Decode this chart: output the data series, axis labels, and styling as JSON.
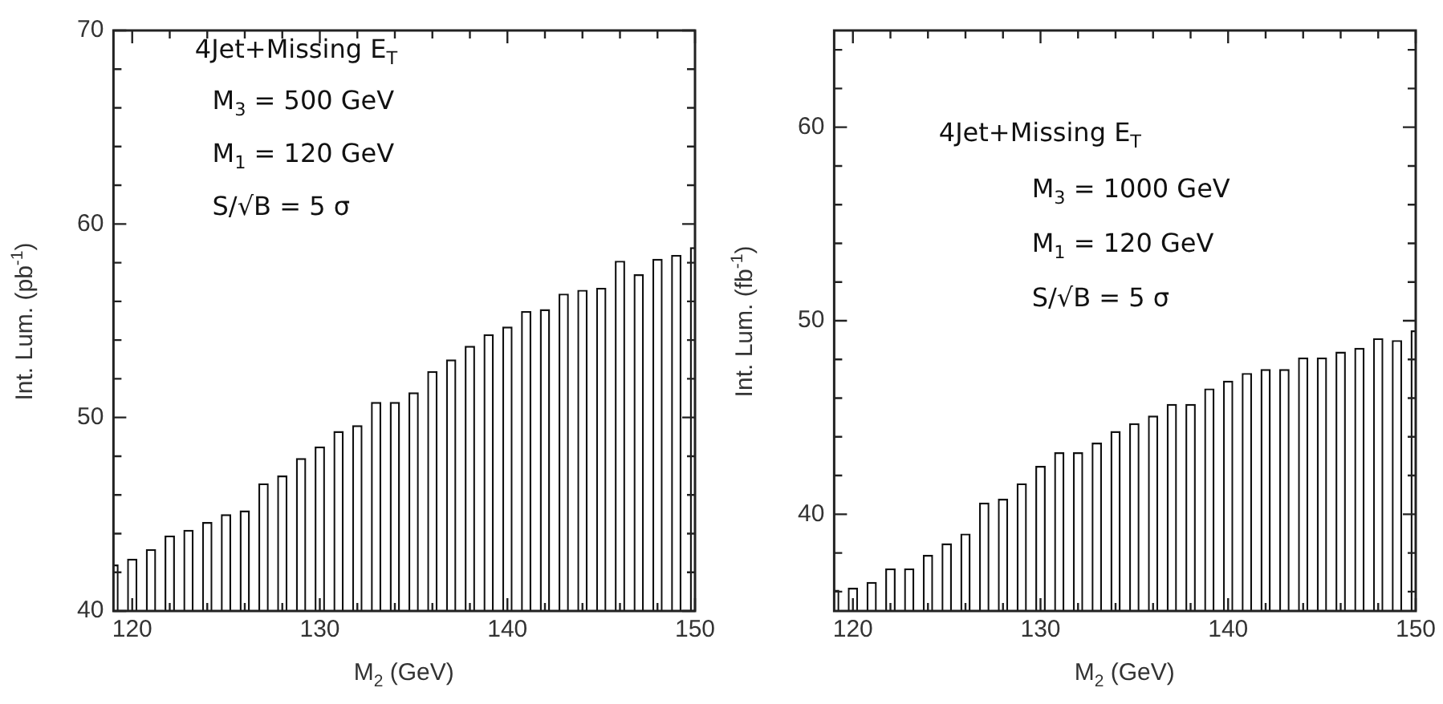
{
  "chart_data": [
    {
      "type": "bar",
      "xlabel": "M$_{2}$ (GeV)",
      "ylabel": "Int. Lum. (pb$^{-1}$)",
      "annotations": [
        "4Jet+Missing E$_{T}$",
        "M$_{3}$ = 500 GeV",
        "M$_{1}$ = 120 GeV",
        "S/√B = 5 σ"
      ],
      "x": [
        119,
        120,
        121,
        122,
        123,
        124,
        125,
        126,
        127,
        128,
        129,
        130,
        131,
        132,
        133,
        134,
        135,
        136,
        137,
        138,
        139,
        140,
        141,
        142,
        143,
        144,
        145,
        146,
        147,
        148,
        149,
        150
      ],
      "values": [
        42.4,
        42.7,
        43.2,
        43.9,
        44.2,
        44.6,
        45.0,
        45.2,
        46.6,
        47.0,
        47.9,
        48.5,
        49.3,
        49.6,
        50.8,
        50.8,
        51.3,
        52.4,
        53.0,
        53.7,
        54.3,
        54.7,
        55.5,
        55.6,
        56.4,
        56.6,
        56.7,
        58.1,
        57.4,
        58.2,
        58.4,
        58.8
      ],
      "color": "#ffffff",
      "xlim": [
        119,
        150
      ],
      "xticks": [
        120,
        {
          "value": 122,
          "label": null
        },
        {
          "value": 124,
          "label": null
        },
        {
          "value": 126,
          "label": null
        },
        {
          "value": 128,
          "label": null
        },
        130,
        {
          "value": 132,
          "label": null
        },
        {
          "value": 134,
          "label": null
        },
        {
          "value": 136,
          "label": null
        },
        {
          "value": 138,
          "label": null
        },
        140,
        {
          "value": 142,
          "label": null
        },
        {
          "value": 144,
          "label": null
        },
        {
          "value": 146,
          "label": null
        },
        {
          "value": 148,
          "label": null
        },
        150
      ],
      "ylim": [
        40,
        70
      ],
      "yticks": [
        40,
        {
          "value": 42,
          "label": null
        },
        {
          "value": 44,
          "label": null
        },
        {
          "value": 46,
          "label": null
        },
        {
          "value": 48,
          "label": null
        },
        50,
        {
          "value": 52,
          "label": null
        },
        {
          "value": 54,
          "label": null
        },
        {
          "value": 56,
          "label": null
        },
        {
          "value": 58,
          "label": null
        },
        60,
        {
          "value": 62,
          "label": null
        },
        {
          "value": 64,
          "label": null
        },
        {
          "value": 66,
          "label": null
        },
        {
          "value": 68,
          "label": null
        },
        70
      ]
    },
    {
      "type": "bar",
      "xlabel": "M$_{2}$ (GeV)",
      "ylabel": "Int. Lum. (fb$^{-1}$)",
      "annotations": [
        "4Jet+Missing E$_{T}$",
        "M$_{3}$ = 1000 GeV",
        "M$_{1}$ = 120 GeV",
        "S/√B = 5 σ"
      ],
      "x": [
        119,
        120,
        121,
        122,
        123,
        124,
        125,
        126,
        127,
        128,
        129,
        130,
        131,
        132,
        133,
        134,
        135,
        136,
        137,
        138,
        139,
        140,
        141,
        142,
        143,
        144,
        145,
        146,
        147,
        148,
        149,
        150
      ],
      "values": [
        36.1,
        36.2,
        36.5,
        37.2,
        37.2,
        37.9,
        38.5,
        39.0,
        40.6,
        40.8,
        41.6,
        42.5,
        43.2,
        43.2,
        43.7,
        44.3,
        44.7,
        45.1,
        45.7,
        45.7,
        46.5,
        46.9,
        47.3,
        47.5,
        47.5,
        48.1,
        48.1,
        48.4,
        48.6,
        49.1,
        49.0,
        49.5
      ],
      "color": "#ffffff",
      "xlim": [
        119,
        150
      ],
      "xticks": [
        120,
        {
          "value": 122,
          "label": null
        },
        {
          "value": 124,
          "label": null
        },
        {
          "value": 126,
          "label": null
        },
        {
          "value": 128,
          "label": null
        },
        130,
        {
          "value": 132,
          "label": null
        },
        {
          "value": 134,
          "label": null
        },
        {
          "value": 136,
          "label": null
        },
        {
          "value": 138,
          "label": null
        },
        140,
        {
          "value": 142,
          "label": null
        },
        {
          "value": 144,
          "label": null
        },
        {
          "value": 146,
          "label": null
        },
        {
          "value": 148,
          "label": null
        },
        150
      ],
      "ylim": [
        35,
        65
      ],
      "yticks": [
        {
          "value": 36,
          "label": null
        },
        {
          "value": 38,
          "label": null
        },
        40,
        {
          "value": 42,
          "label": null
        },
        {
          "value": 44,
          "label": null
        },
        {
          "value": 46,
          "label": null
        },
        {
          "value": 48,
          "label": null
        },
        50,
        {
          "value": 52,
          "label": null
        },
        {
          "value": 54,
          "label": null
        },
        {
          "value": 56,
          "label": null
        },
        {
          "value": 58,
          "label": null
        },
        60,
        {
          "value": 62,
          "label": null
        },
        {
          "value": 64,
          "label": null
        }
      ]
    }
  ]
}
